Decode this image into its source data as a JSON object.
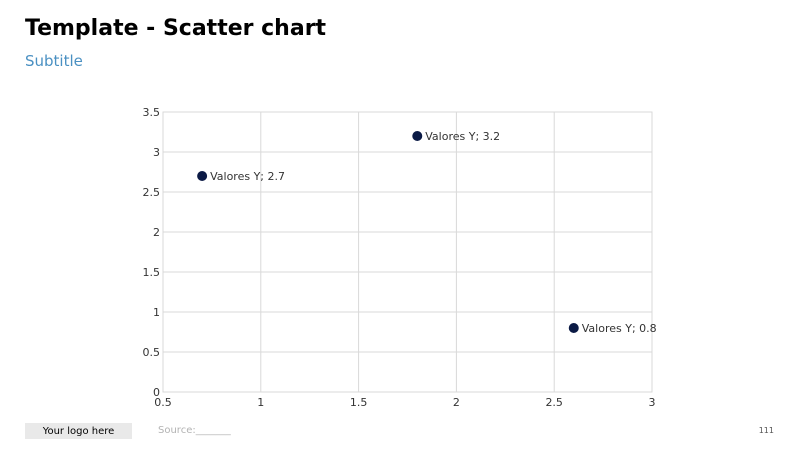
{
  "page": {
    "title": "Template - Scatter chart",
    "subtitle": "Subtitle",
    "logo_text": "Your logo here",
    "source_text": "Source:_______",
    "page_number": "111"
  },
  "colors": {
    "point": "#0b1a45",
    "grid": "#d9d9d9",
    "subtitle": "#4a90c2"
  },
  "chart_data": {
    "type": "scatter",
    "title": "",
    "xlabel": "",
    "ylabel": "",
    "xlim": [
      0.5,
      3
    ],
    "ylim": [
      0,
      3.5
    ],
    "x_ticks": [
      "0.5",
      "1",
      "1.5",
      "2",
      "2.5",
      "3"
    ],
    "y_ticks": [
      "0",
      "0.5",
      "1",
      "1.5",
      "2",
      "2.5",
      "3",
      "3.5"
    ],
    "grid": true,
    "legend": "none",
    "series": [
      {
        "points": [
          {
            "x": 0.7,
            "y": 2.7,
            "label": "Valores Y; 2.7"
          },
          {
            "x": 1.8,
            "y": 3.2,
            "label": "Valores Y; 3.2"
          },
          {
            "x": 2.6,
            "y": 0.8,
            "label": "Valores Y; 0.8"
          }
        ]
      }
    ]
  }
}
